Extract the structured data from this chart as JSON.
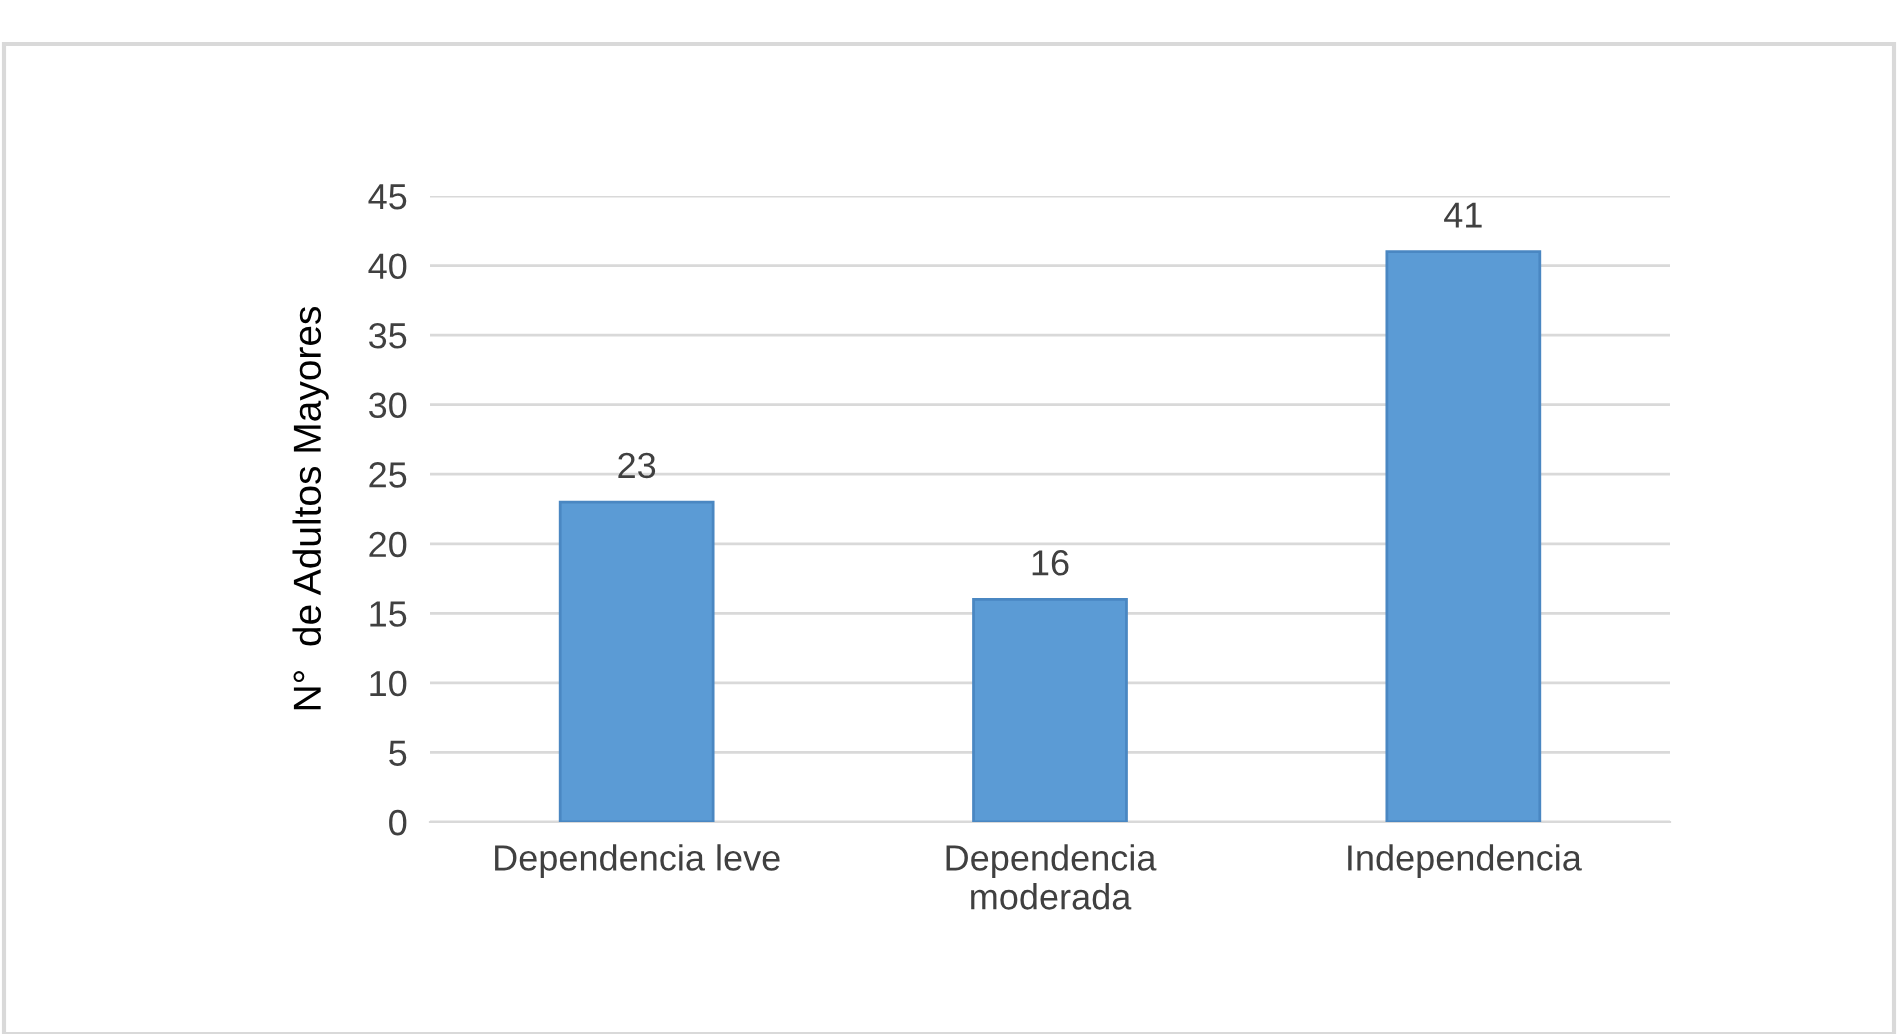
{
  "chart_data": {
    "type": "bar",
    "ylabel": "N°  de Adultos Mayores",
    "categories": [
      "Dependencia leve",
      "Dependencia\nmoderada",
      "Independencia"
    ],
    "values": [
      23,
      16,
      41
    ],
    "color": "#5b9bd5",
    "ylim": [
      0,
      45
    ],
    "yticks": [
      0,
      5,
      10,
      15,
      20,
      25,
      30,
      35,
      40,
      45
    ],
    "grid": "y",
    "data_labels": true
  }
}
